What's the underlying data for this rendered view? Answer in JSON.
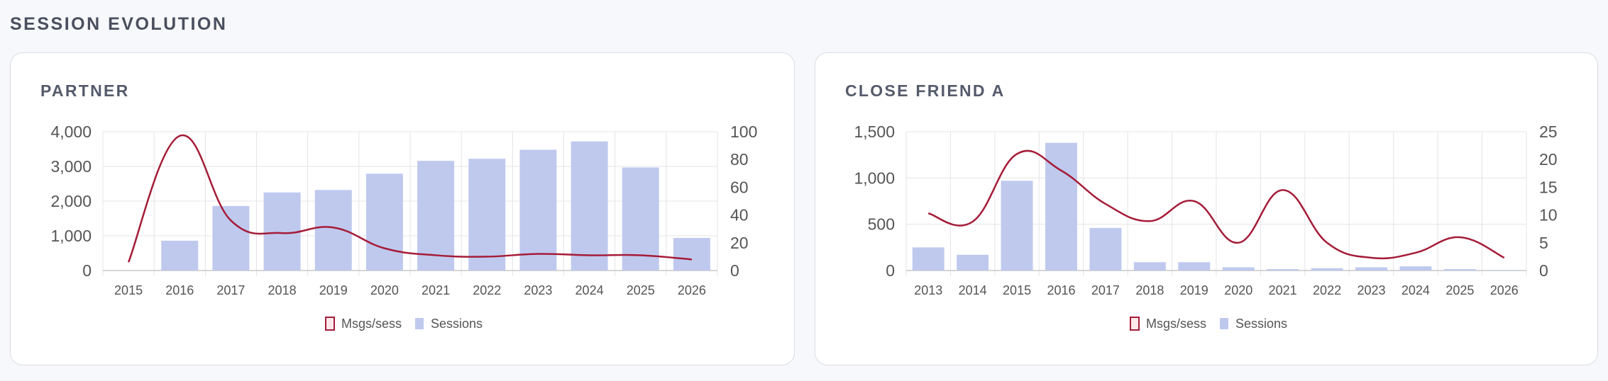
{
  "page": {
    "section_title": "SESSION EVOLUTION"
  },
  "colors": {
    "line": "#a51c38",
    "bar": "#bfc9ee",
    "grid": "#e4e4e4",
    "axis": "#c8c8c8"
  },
  "legend": {
    "line_label": "Msgs/sess",
    "bar_label": "Sessions"
  },
  "chart_data": [
    {
      "type": "bar",
      "title": "PARTNER",
      "categories": [
        "2015",
        "2016",
        "2017",
        "2018",
        "2019",
        "2020",
        "2021",
        "2022",
        "2023",
        "2024",
        "2025",
        "2026"
      ],
      "series": [
        {
          "name": "Sessions",
          "type": "bar",
          "axis": "left",
          "values": [
            0,
            860,
            1860,
            2250,
            2320,
            2790,
            3160,
            3220,
            3480,
            3720,
            2970,
            940
          ]
        },
        {
          "name": "Msgs/sess",
          "type": "line",
          "axis": "right",
          "values": [
            6,
            97,
            36,
            27,
            31,
            16,
            11,
            10,
            12,
            11,
            11,
            8
          ]
        }
      ],
      "y_left": {
        "min": 0,
        "max": 4000,
        "ticks": [
          0,
          1000,
          2000,
          3000,
          4000
        ],
        "tick_labels": [
          "0",
          "1,000",
          "2,000",
          "3,000",
          "4,000"
        ]
      },
      "y_right": {
        "min": 0,
        "max": 100,
        "ticks": [
          0,
          20,
          40,
          60,
          80,
          100
        ],
        "tick_labels": [
          "0",
          "20",
          "40",
          "60",
          "80",
          "100"
        ]
      },
      "grid": true,
      "legend_position": "bottom"
    },
    {
      "type": "bar",
      "title": "CLOSE FRIEND A",
      "categories": [
        "2013",
        "2014",
        "2015",
        "2016",
        "2017",
        "2018",
        "2019",
        "2020",
        "2021",
        "2022",
        "2023",
        "2024",
        "2025",
        "2026"
      ],
      "series": [
        {
          "name": "Sessions",
          "type": "bar",
          "axis": "left",
          "values": [
            250,
            170,
            970,
            1380,
            460,
            90,
            90,
            35,
            15,
            25,
            35,
            45,
            15,
            5
          ]
        },
        {
          "name": "Msgs/sess",
          "type": "line",
          "axis": "right",
          "values": [
            10.3,
            8.8,
            21,
            18,
            12,
            8.9,
            12.5,
            5,
            14.5,
            5,
            2.3,
            3.2,
            6,
            2.3
          ]
        }
      ],
      "y_left": {
        "min": 0,
        "max": 1500,
        "ticks": [
          0,
          500,
          1000,
          1500
        ],
        "tick_labels": [
          "0",
          "500",
          "1,000",
          "1,500"
        ]
      },
      "y_right": {
        "min": 0,
        "max": 25,
        "ticks": [
          0,
          5,
          10,
          15,
          20,
          25
        ],
        "tick_labels": [
          "0",
          "5",
          "10",
          "15",
          "20",
          "25"
        ]
      },
      "grid": true,
      "legend_position": "bottom"
    }
  ]
}
